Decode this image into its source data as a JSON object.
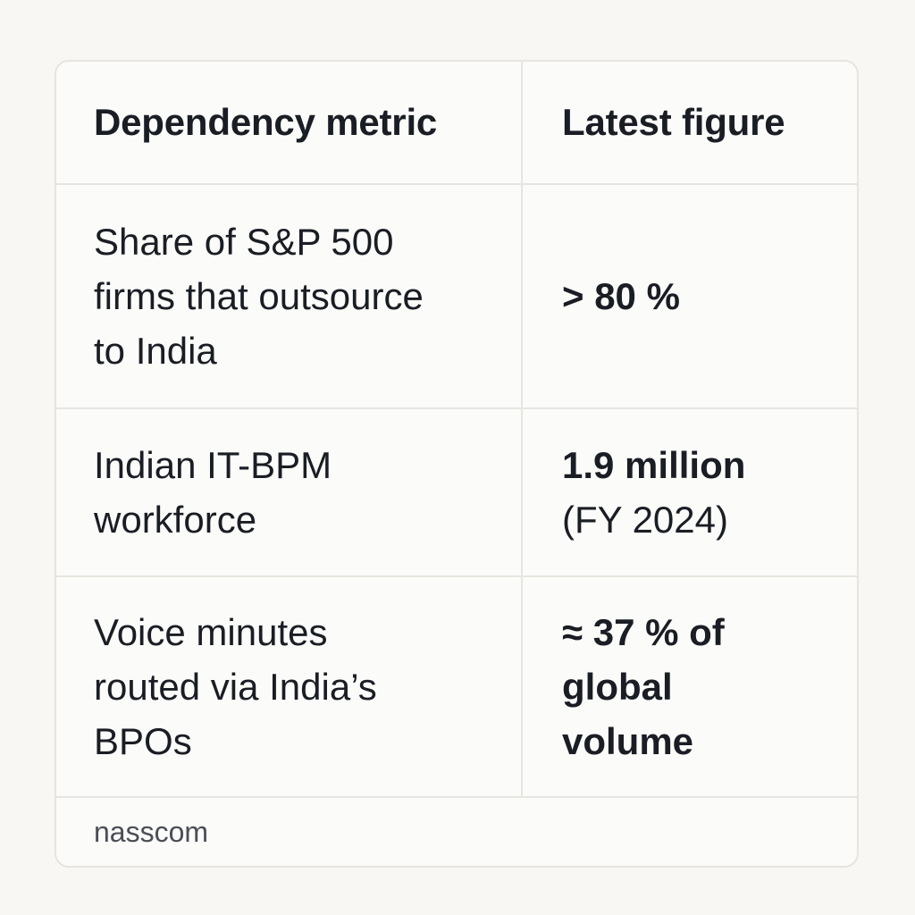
{
  "table": {
    "headers": [
      "Dependency metric",
      "Latest figure"
    ],
    "rows": [
      {
        "metric": "Share of S&P 500\nfirms that outsource\nto India",
        "value": "> 80 %",
        "value_note": ""
      },
      {
        "metric": "Indian IT-BPM\nworkforce",
        "value": "1.9 million",
        "value_note": "(FY 2024)"
      },
      {
        "metric": "Voice minutes\nrouted via India’s\nBPOs",
        "value": "≈ 37 % of\nglobal\nvolume",
        "value_note": ""
      }
    ]
  },
  "source": "nasscom"
}
